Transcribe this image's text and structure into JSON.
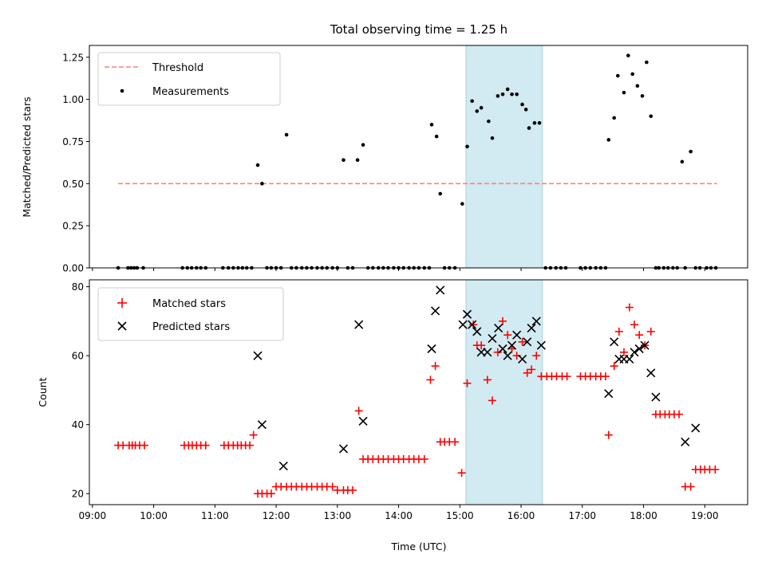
{
  "chart_data": [
    {
      "type": "scatter",
      "title": "Total observing time = 1.25 h",
      "xlabel": "",
      "ylabel": "Matched/Predicted stars",
      "xlim": [
        8.95,
        19.7
      ],
      "ylim": [
        0,
        1.32
      ],
      "yticks": [
        0.0,
        0.25,
        0.5,
        0.75,
        1.0,
        1.25
      ],
      "yticklabels": [
        "0.00",
        "0.25",
        "0.50",
        "0.75",
        "1.00",
        "1.25"
      ],
      "highlight_span": [
        15.1,
        16.35
      ],
      "highlight_color": "#add8e6",
      "legend": {
        "placement": "upper left",
        "entries": [
          {
            "label": "Threshold",
            "kind": "dashed-line",
            "color": "#ff7f7f"
          },
          {
            "label": "Measurements",
            "kind": "dot",
            "color": "#000000"
          }
        ]
      },
      "series": [
        {
          "name": "Threshold",
          "kind": "line",
          "color": "#ff7f7f",
          "x": [
            9.42,
            19.2
          ],
          "y": [
            0.5,
            0.5
          ]
        },
        {
          "name": "Measurements",
          "kind": "scatter",
          "color": "#000000",
          "x": [
            9.42,
            9.58,
            9.63,
            9.68,
            9.73,
            9.83,
            10.47,
            10.55,
            10.62,
            10.7,
            10.77,
            10.85,
            11.13,
            11.22,
            11.3,
            11.38,
            11.45,
            11.52,
            11.6,
            11.7,
            11.77,
            11.85,
            11.92,
            12.0,
            12.08,
            12.17,
            12.25,
            12.33,
            12.42,
            12.5,
            12.58,
            12.67,
            12.75,
            12.83,
            12.92,
            13.0,
            13.1,
            13.17,
            13.25,
            13.33,
            13.42,
            13.5,
            13.58,
            13.67,
            13.75,
            13.83,
            13.92,
            14.0,
            14.08,
            14.17,
            14.25,
            14.33,
            14.42,
            14.5,
            14.54,
            14.62,
            14.68,
            14.75,
            14.83,
            14.92,
            15.04,
            15.12,
            15.2,
            15.28,
            15.35,
            15.47,
            15.53,
            15.62,
            15.7,
            15.78,
            15.85,
            15.93,
            16.02,
            16.08,
            16.13,
            16.22,
            16.3,
            16.4,
            16.48,
            16.57,
            16.65,
            16.73,
            16.97,
            17.05,
            17.13,
            17.22,
            17.3,
            17.38,
            17.43,
            17.52,
            17.58,
            17.68,
            17.75,
            17.82,
            17.9,
            17.98,
            18.05,
            18.12,
            18.2,
            18.25,
            18.33,
            18.4,
            18.48,
            18.55,
            18.63,
            18.68,
            18.77,
            18.85,
            18.92,
            19.03,
            19.1,
            19.18
          ],
          "y": [
            0,
            0,
            0,
            0,
            0,
            0,
            0,
            0,
            0,
            0,
            0,
            0,
            0,
            0,
            0,
            0,
            0,
            0,
            0,
            0.61,
            0.5,
            0,
            0,
            0,
            0,
            0.79,
            0,
            0,
            0,
            0,
            0,
            0,
            0,
            0,
            0,
            0,
            0.64,
            0,
            0,
            0.64,
            0.73,
            0,
            0,
            0,
            0,
            0,
            0,
            0,
            0,
            0,
            0,
            0,
            0,
            0,
            0.85,
            0.78,
            0.44,
            0,
            0,
            0,
            0.38,
            0.72,
            0.99,
            0.93,
            0.95,
            0.87,
            0.77,
            1.02,
            1.03,
            1.06,
            1.03,
            1.03,
            0.97,
            0.94,
            0.83,
            0.86,
            0.86,
            0,
            0,
            0,
            0,
            0,
            0,
            0,
            0,
            0,
            0,
            0,
            0.76,
            0.89,
            1.14,
            1.04,
            1.26,
            1.15,
            1.08,
            1.02,
            1.22,
            0.9,
            0,
            0,
            0,
            0,
            0,
            0,
            0.63,
            0,
            0.69,
            0,
            0,
            0,
            0,
            0
          ]
        }
      ]
    },
    {
      "type": "scatter",
      "title": "",
      "xlabel": "Time (UTC)",
      "ylabel": "Count",
      "xlim": [
        8.95,
        19.7
      ],
      "ylim": [
        16.8,
        82
      ],
      "yticks": [
        20,
        40,
        60,
        80
      ],
      "yticklabels": [
        "20",
        "40",
        "60",
        "80"
      ],
      "xticks": [
        9,
        10,
        11,
        12,
        13,
        14,
        15,
        16,
        17,
        18,
        19
      ],
      "xticklabels": [
        "09:00",
        "10:00",
        "11:00",
        "12:00",
        "13:00",
        "14:00",
        "15:00",
        "16:00",
        "17:00",
        "18:00",
        "19:00"
      ],
      "highlight_span": [
        15.1,
        16.35
      ],
      "highlight_color": "#add8e6",
      "legend": {
        "placement": "upper left",
        "entries": [
          {
            "label": "Matched stars",
            "kind": "plus",
            "color": "#ff0000"
          },
          {
            "label": "Predicted stars",
            "kind": "x",
            "color": "#000000"
          }
        ]
      },
      "series": [
        {
          "name": "Matched stars",
          "kind": "plus",
          "color": "#ff0000",
          "x": [
            9.42,
            9.5,
            9.6,
            9.65,
            9.7,
            9.77,
            9.85,
            10.5,
            10.57,
            10.63,
            10.7,
            10.77,
            10.85,
            11.15,
            11.22,
            11.3,
            11.37,
            11.43,
            11.5,
            11.57,
            11.63,
            11.7,
            11.77,
            11.85,
            11.92,
            12.0,
            12.08,
            12.17,
            12.25,
            12.33,
            12.42,
            12.5,
            12.58,
            12.67,
            12.75,
            12.83,
            12.92,
            13.0,
            13.1,
            13.17,
            13.25,
            13.35,
            13.42,
            13.5,
            13.58,
            13.67,
            13.75,
            13.83,
            13.92,
            14.0,
            14.08,
            14.17,
            14.25,
            14.33,
            14.42,
            14.52,
            14.6,
            14.68,
            14.75,
            14.83,
            14.92,
            15.03,
            15.12,
            15.22,
            15.28,
            15.35,
            15.45,
            15.53,
            15.62,
            15.7,
            15.78,
            15.85,
            15.93,
            16.02,
            16.1,
            16.17,
            16.25,
            16.33,
            16.42,
            16.5,
            16.58,
            16.67,
            16.75,
            16.97,
            17.05,
            17.13,
            17.22,
            17.3,
            17.38,
            17.43,
            17.52,
            17.6,
            17.68,
            17.77,
            17.85,
            17.93,
            18.02,
            18.12,
            18.2,
            18.27,
            18.35,
            18.42,
            18.5,
            18.58,
            18.68,
            18.77,
            18.85,
            18.93,
            19.0,
            19.08,
            19.17
          ],
          "y": [
            34,
            34,
            34,
            34,
            34,
            34,
            34,
            34,
            34,
            34,
            34,
            34,
            34,
            34,
            34,
            34,
            34,
            34,
            34,
            34,
            37,
            20,
            20,
            20,
            20,
            22,
            22,
            22,
            22,
            22,
            22,
            22,
            22,
            22,
            22,
            22,
            22,
            21,
            21,
            21,
            21,
            44,
            30,
            30,
            30,
            30,
            30,
            30,
            30,
            30,
            30,
            30,
            30,
            30,
            30,
            53,
            57,
            35,
            35,
            35,
            35,
            26,
            52,
            69,
            63,
            63,
            53,
            47,
            61,
            70,
            66,
            62,
            60,
            64,
            55,
            56,
            60,
            54,
            54,
            54,
            54,
            54,
            54,
            54,
            54,
            54,
            54,
            54,
            54,
            37,
            57,
            67,
            61,
            74,
            69,
            66,
            63,
            67,
            43,
            43,
            43,
            43,
            43,
            43,
            22,
            22,
            27,
            27,
            27,
            27,
            27
          ]
        },
        {
          "name": "Predicted stars",
          "kind": "x",
          "color": "#000000",
          "x": [
            11.7,
            11.77,
            12.12,
            13.1,
            13.35,
            13.42,
            14.54,
            14.6,
            14.68,
            15.05,
            15.12,
            15.2,
            15.28,
            15.35,
            15.45,
            15.53,
            15.63,
            15.7,
            15.78,
            15.85,
            15.93,
            16.02,
            16.1,
            16.17,
            16.25,
            16.33,
            17.43,
            17.52,
            17.6,
            17.68,
            17.77,
            17.85,
            17.93,
            18.02,
            18.12,
            18.2,
            18.68,
            18.85
          ],
          "y": [
            60,
            40,
            28,
            33,
            69,
            41,
            62,
            73,
            79,
            69,
            72,
            69,
            67,
            61,
            61,
            65,
            68,
            62,
            60,
            63,
            66,
            59,
            64,
            68,
            70,
            63,
            49,
            64,
            59,
            59,
            59,
            61,
            62,
            63,
            55,
            48,
            35,
            39
          ]
        }
      ]
    }
  ]
}
